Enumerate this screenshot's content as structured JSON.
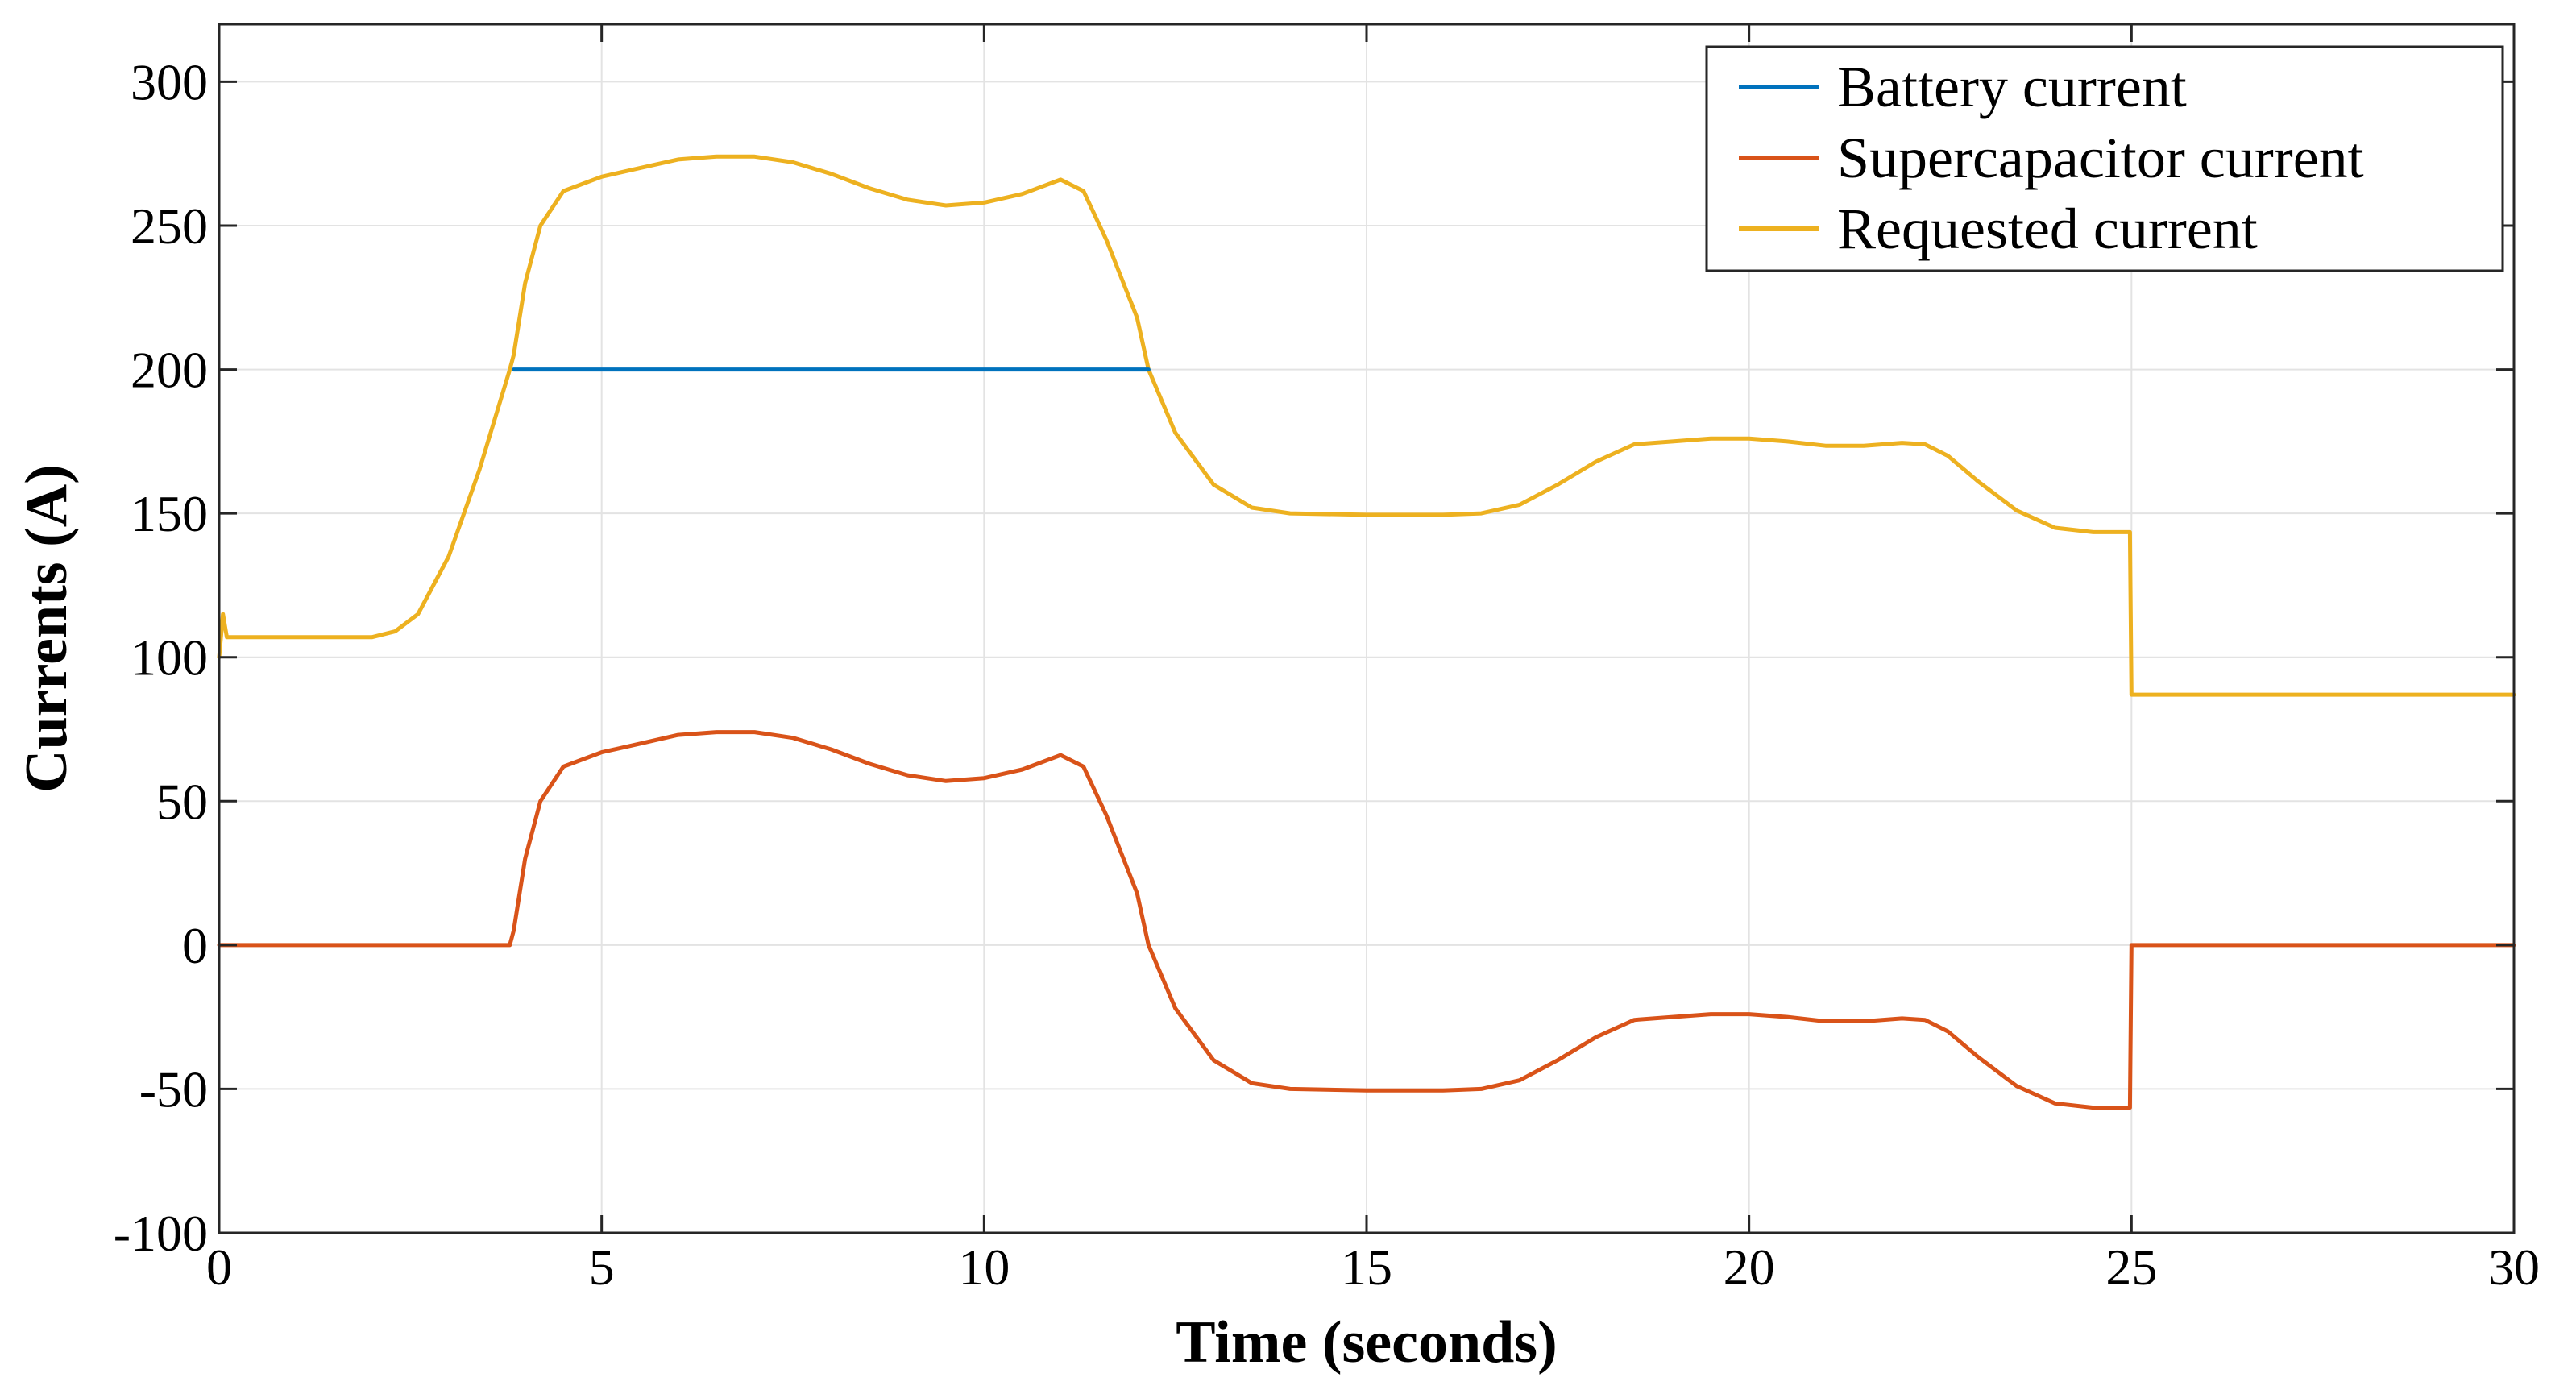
{
  "chart_data": {
    "type": "line",
    "title": "",
    "xlabel": "Time (seconds)",
    "ylabel": "Currents (A)",
    "xlim": [
      0,
      30
    ],
    "ylim": [
      -100,
      320
    ],
    "xticks": [
      0,
      5,
      10,
      15,
      20,
      25,
      30
    ],
    "yticks": [
      -100,
      -50,
      0,
      50,
      100,
      150,
      200,
      250,
      300
    ],
    "grid": true,
    "legend_position": "top-right",
    "series": [
      {
        "name": "Battery current",
        "color": "#0072BD",
        "x": [
          3.85,
          12.15
        ],
        "y": [
          200,
          200
        ]
      },
      {
        "name": "Supercapacitor current",
        "color": "#D95319",
        "x": [
          0,
          3.8,
          3.85,
          4.0,
          4.2,
          4.5,
          5.0,
          5.5,
          6.0,
          6.5,
          7.0,
          7.5,
          8.0,
          8.5,
          9.0,
          9.5,
          10.0,
          10.5,
          11.0,
          11.3,
          11.6,
          12.0,
          12.15,
          12.5,
          13.0,
          13.5,
          14.0,
          15.0,
          16.0,
          16.5,
          17.0,
          17.5,
          18.0,
          18.5,
          19.0,
          19.5,
          20.0,
          20.5,
          21.0,
          21.5,
          22.0,
          22.3,
          22.6,
          23.0,
          23.5,
          24.0,
          24.5,
          24.98,
          25.0,
          30.0
        ],
        "y": [
          0,
          0,
          5,
          30,
          50,
          62,
          67,
          70,
          73,
          74,
          74,
          72,
          68,
          63,
          59,
          57,
          58,
          61,
          66,
          62,
          45,
          18,
          0,
          -22,
          -40,
          -48,
          -50,
          -50.5,
          -50.5,
          -50,
          -47,
          -40,
          -32,
          -26,
          -25,
          -24,
          -24,
          -25,
          -26.5,
          -26.5,
          -25.5,
          -26,
          -30,
          -39,
          -49,
          -55,
          -56.5,
          -56.5,
          0,
          0
        ]
      },
      {
        "name": "Requested current",
        "color": "#EDB120",
        "x": [
          0,
          0.05,
          0.1,
          0.3,
          1.0,
          2.0,
          2.3,
          2.6,
          3.0,
          3.4,
          3.8,
          3.85,
          4.0,
          4.2,
          4.5,
          5.0,
          5.5,
          6.0,
          6.5,
          7.0,
          7.5,
          8.0,
          8.5,
          9.0,
          9.5,
          10.0,
          10.5,
          11.0,
          11.3,
          11.6,
          12.0,
          12.15,
          12.5,
          13.0,
          13.5,
          14.0,
          15.0,
          16.0,
          16.5,
          17.0,
          17.5,
          18.0,
          18.5,
          19.0,
          19.5,
          20.0,
          20.5,
          21.0,
          21.5,
          22.0,
          22.3,
          22.6,
          23.0,
          23.5,
          24.0,
          24.5,
          24.98,
          25.0,
          30.0
        ],
        "y": [
          100,
          115,
          107,
          107,
          107,
          107,
          109,
          115,
          135,
          165,
          200,
          205,
          230,
          250,
          262,
          267,
          270,
          273,
          274,
          274,
          272,
          268,
          263,
          259,
          257,
          258,
          261,
          266,
          262,
          245,
          218,
          200,
          178,
          160,
          152,
          150,
          149.5,
          149.5,
          150,
          153,
          160,
          168,
          174,
          175,
          176,
          176,
          175,
          173.5,
          173.5,
          174.5,
          174,
          170,
          161,
          151,
          145,
          143.5,
          143.5,
          87,
          87
        ]
      }
    ]
  }
}
